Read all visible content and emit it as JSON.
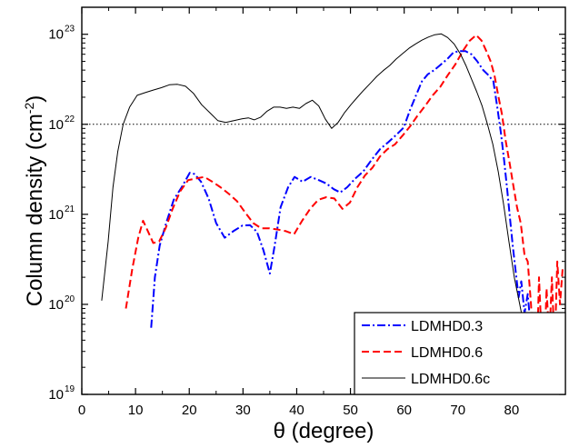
{
  "chart_data": {
    "type": "line",
    "xlabel": "θ (degree)",
    "ylabel_main": "Column density (cm",
    "ylabel_exp": "-2",
    "ylabel_close": ")",
    "xlim": [
      0,
      90
    ],
    "ylim_log10": [
      19,
      23.3
    ],
    "log_y": true,
    "grid": false,
    "legend_position": "bottom-right",
    "x_ticks": [
      0,
      10,
      20,
      30,
      40,
      50,
      60,
      70,
      80
    ],
    "x_tick_labels": [
      "0",
      "10",
      "20",
      "30",
      "40",
      "50",
      "60",
      "70",
      "80"
    ],
    "y_ticks": [
      {
        "base": "10",
        "exp": "19",
        "value": 1e+19
      },
      {
        "base": "10",
        "exp": "20",
        "value": 1e+20
      },
      {
        "base": "10",
        "exp": "21",
        "value": 1e+21
      },
      {
        "base": "10",
        "exp": "22",
        "value": 1e+22
      },
      {
        "base": "10",
        "exp": "23",
        "value": 1e+23
      }
    ],
    "reference_line": {
      "y": 1e+22,
      "style": "dotted",
      "color": "#000000"
    },
    "series": [
      {
        "name": "LDMHD0.3",
        "color": "#0000ff",
        "dash": "dashdot",
        "x": [
          12.9,
          13.6,
          14.5,
          15.7,
          17.1,
          18.6,
          20.1,
          21.0,
          22.2,
          23.6,
          25.0,
          26.6,
          28.2,
          29.9,
          31.3,
          32.6,
          33.8,
          35.0,
          35.9,
          37.0,
          38.4,
          39.6,
          41.1,
          42.6,
          44.1,
          45.5,
          46.9,
          48.1,
          49.4,
          50.9,
          52.4,
          53.9,
          55.5,
          57.0,
          58.5,
          59.9,
          61.1,
          62.2,
          63.3,
          64.4,
          65.6,
          66.8,
          68.0,
          69.2,
          70.3,
          71.4,
          72.5,
          73.6,
          74.7,
          75.7,
          76.6,
          77.3,
          78.0,
          78.6,
          79.2,
          79.7,
          80.2,
          80.8,
          81.3,
          81.8,
          82.4,
          83.0,
          83.6,
          84.2,
          84.8,
          85.3,
          85.7,
          86.1,
          86.5
        ],
        "y": [
          5.5e+19,
          2e+20,
          4.5e+20,
          8e+20,
          1.45e+21,
          2e+21,
          2.9e+21,
          2.8e+21,
          2.3e+21,
          1.5e+21,
          8e+20,
          5.5e+20,
          6.5e+20,
          7.5e+20,
          7.6e+20,
          6.4e+20,
          4e+20,
          2.2e+20,
          4.5e+20,
          1.2e+21,
          2e+21,
          2.6e+21,
          2.3e+21,
          2.6e+21,
          2.4e+21,
          2.2e+21,
          1.9e+21,
          1.75e+21,
          2e+21,
          2.5e+21,
          3e+21,
          4e+21,
          5.3e+21,
          6.3e+21,
          7.6e+21,
          9.2e+21,
          1.45e+22,
          2.1e+22,
          3e+22,
          3.6e+22,
          4e+22,
          4.6e+22,
          5.3e+22,
          6.3e+22,
          6.5e+22,
          6.5e+22,
          6e+22,
          5e+22,
          4e+22,
          3.5e+22,
          3e+22,
          1.6e+22,
          8e+21,
          4e+21,
          1.8e+21,
          9e+20,
          4.5e+20,
          2.2e+20,
          1.2e+20,
          1.8e+20,
          8e+19,
          1.3e+20,
          5e+19,
          7e+19,
          2.5e+19,
          1.4e+19,
          2e+19,
          1.2e+19,
          1e+19
        ]
      },
      {
        "name": "LDMHD0.6",
        "color": "#ff0000",
        "dash": "dashed",
        "x": [
          8.2,
          9.4,
          10.5,
          11.4,
          12.3,
          13.3,
          14.4,
          15.6,
          16.9,
          18.3,
          19.8,
          21.3,
          22.8,
          24.3,
          25.8,
          27.3,
          28.9,
          30.4,
          31.9,
          33.4,
          34.9,
          36.4,
          38.0,
          39.5,
          41.0,
          42.5,
          44.0,
          45.5,
          47.0,
          48.5,
          49.9,
          51.3,
          52.7,
          54.1,
          55.5,
          56.9,
          58.3,
          59.7,
          61.1,
          62.5,
          63.9,
          65.3,
          66.7,
          68.1,
          69.5,
          70.9,
          72.2,
          73.4,
          74.4,
          75.3,
          76.1,
          76.8,
          77.5,
          78.2,
          78.9,
          79.6,
          80.3,
          81.0,
          81.7,
          82.4,
          83.0,
          83.6,
          84.1,
          84.6,
          85.1,
          85.6,
          86.0,
          86.5,
          87.0,
          87.5,
          88.0,
          88.5,
          89.0,
          89.5
        ],
        "y": [
          9e+19,
          2.5e+20,
          5.5e+20,
          8.5e+20,
          6.5e+20,
          4.8e+20,
          5e+20,
          7e+20,
          1.15e+21,
          1.8e+21,
          2.4e+21,
          2.5e+21,
          2.6e+21,
          2.3e+21,
          2e+21,
          1.7e+21,
          1.4e+21,
          1.05e+21,
          8e+20,
          7e+20,
          7e+20,
          6.8e+20,
          6.5e+20,
          6e+20,
          8.5e+20,
          1.15e+21,
          1.45e+21,
          1.55e+21,
          1.5e+21,
          1.15e+21,
          1.35e+21,
          2e+21,
          2.7e+21,
          3.3e+21,
          4.4e+21,
          5.3e+21,
          6e+21,
          7.5e+21,
          9.5e+21,
          1.25e+22,
          1.6e+22,
          2.1e+22,
          2.6e+22,
          3.5e+22,
          4.6e+22,
          6.5e+22,
          8.5e+22,
          9.8e+22,
          8.5e+22,
          6.5e+22,
          5e+22,
          3.5e+22,
          2.1e+22,
          1.3e+22,
          6.5e+21,
          3.8e+21,
          2.1e+21,
          1.2e+21,
          8e+20,
          3.5e+20,
          3e+20,
          1e+20,
          2.5e+19,
          1.5e+19,
          2e+20,
          4e+19,
          2e+19,
          1.5e+20,
          4e+19,
          2e+20,
          3e+19,
          3e+20,
          1e+20,
          2.5e+20
        ]
      },
      {
        "name": "LDMHD0.6c",
        "color": "#000000",
        "dash": "solid",
        "x": [
          3.7,
          4.9,
          5.8,
          6.7,
          7.7,
          8.9,
          10.3,
          11.8,
          13.3,
          14.8,
          16.3,
          17.8,
          19.3,
          20.8,
          22.3,
          23.8,
          25.3,
          26.8,
          28.3,
          29.8,
          31.0,
          32.1,
          33.3,
          34.5,
          35.7,
          36.9,
          38.1,
          39.3,
          40.5,
          41.7,
          42.9,
          44.1,
          45.3,
          46.5,
          47.7,
          48.9,
          50.1,
          51.3,
          52.5,
          53.7,
          54.9,
          56.1,
          57.3,
          58.5,
          59.7,
          60.9,
          62.1,
          63.3,
          64.5,
          65.7,
          66.9,
          68.1,
          69.3,
          70.5,
          71.5,
          72.5,
          73.5,
          74.5,
          75.5,
          76.5,
          77.5,
          78.5,
          79.5,
          80.5,
          81.5,
          82.5,
          83.5,
          84.3,
          85.0,
          85.8,
          86.5
        ],
        "y": [
          1.1e+20,
          5e+20,
          2e+21,
          5e+21,
          1e+22,
          1.55e+22,
          2.1e+22,
          2.25e+22,
          2.4e+22,
          2.55e+22,
          2.75e+22,
          2.78e+22,
          2.65e+22,
          2.2e+22,
          1.65e+22,
          1.35e+22,
          1.1e+22,
          1.05e+22,
          1.1e+22,
          1.15e+22,
          1.18e+22,
          1.12e+22,
          1.2e+22,
          1.4e+22,
          1.55e+22,
          1.55e+22,
          1.5e+22,
          1.55e+22,
          1.5e+22,
          1.7e+22,
          1.85e+22,
          1.6e+22,
          1.15e+22,
          9e+21,
          1.05e+22,
          1.35e+22,
          1.65e+22,
          2e+22,
          2.4e+22,
          2.85e+22,
          3.4e+22,
          3.95e+22,
          4.5e+22,
          5.3e+22,
          6.1e+22,
          7e+22,
          7.8e+22,
          8.6e+22,
          9.3e+22,
          9.9e+22,
          1.01e+23,
          9.2e+22,
          7.8e+22,
          6e+22,
          4.5e+22,
          3.2e+22,
          2.3e+22,
          1.6e+22,
          1e+22,
          6e+21,
          3e+21,
          1.3e+21,
          5e+20,
          2e+20,
          1e+20,
          5e+19,
          2.8e+19,
          1.7e+19,
          1.2e+19,
          1.05e+19,
          1e+19
        ]
      }
    ],
    "legend": [
      "LDMHD0.3",
      "LDMHD0.6",
      "LDMHD0.6c"
    ]
  }
}
